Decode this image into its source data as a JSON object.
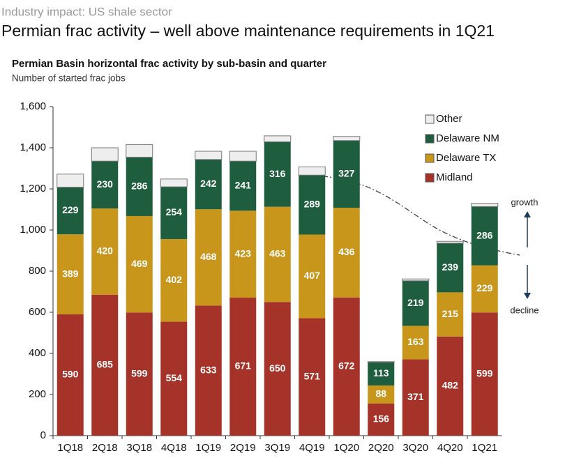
{
  "header": "Industry impact: US shale sector",
  "headline": "Permian frac activity – well above maintenance requirements in 1Q21",
  "chart_data": {
    "type": "stacked_bar",
    "title": "Permian Basin horizontal frac activity by sub-basin and quarter",
    "subtitle": "Number of started frac jobs",
    "categories": [
      "1Q18",
      "2Q18",
      "3Q18",
      "4Q18",
      "1Q19",
      "2Q19",
      "3Q19",
      "4Q19",
      "1Q20",
      "2Q20",
      "3Q20",
      "4Q20",
      "1Q21"
    ],
    "series": [
      {
        "name": "Midland",
        "color": "#a5332a",
        "labels": true,
        "values": [
          590,
          685,
          599,
          554,
          633,
          671,
          650,
          571,
          672,
          156,
          371,
          482,
          599
        ]
      },
      {
        "name": "Delaware TX",
        "color": "#c9961c",
        "labels": true,
        "values": [
          389,
          420,
          469,
          402,
          468,
          423,
          463,
          407,
          436,
          88,
          163,
          215,
          229
        ]
      },
      {
        "name": "Delaware NM",
        "color": "#1f5d3f",
        "labels": true,
        "values": [
          229,
          230,
          286,
          254,
          242,
          241,
          316,
          289,
          327,
          113,
          219,
          239,
          286
        ]
      },
      {
        "name": "Other",
        "color": "#eeeeee",
        "labels": false,
        "values": [
          64,
          65,
          61,
          38,
          40,
          48,
          29,
          40,
          20,
          3,
          9,
          9,
          16
        ]
      }
    ],
    "ylim": [
      0,
      1600
    ],
    "yticks": [
      0,
      200,
      400,
      600,
      800,
      {
        "value": 1000,
        "label": "1,000"
      },
      {
        "value": 1200,
        "label": "1,200"
      },
      {
        "value": 1400,
        "label": "1,400"
      },
      {
        "value": 1600,
        "label": "1,600"
      }
    ],
    "legend": "upper right",
    "annotations": [
      "growth",
      "decline"
    ]
  }
}
